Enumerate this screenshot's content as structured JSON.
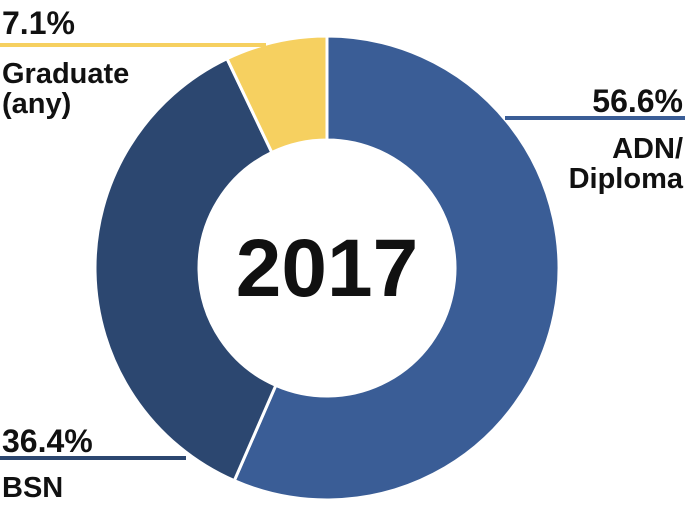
{
  "chart_data": {
    "type": "pie",
    "title": "2017",
    "categories": [
      "ADN/ Diploma",
      "BSN",
      "Graduate (any)"
    ],
    "values": [
      56.6,
      36.4,
      7.1
    ],
    "value_labels": [
      "56.6%",
      "36.4%",
      "7.1%"
    ],
    "colors": [
      "#3a5d96",
      "#2c4770",
      "#f6d060"
    ]
  }
}
